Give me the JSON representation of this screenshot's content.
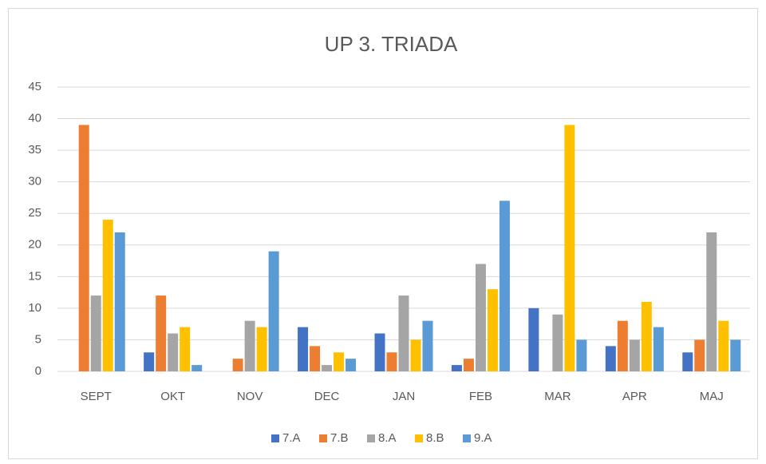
{
  "chart_data": {
    "type": "bar",
    "title": "UP 3. TRIADA",
    "categories": [
      "SEPT",
      "OKT",
      "NOV",
      "DEC",
      "JAN",
      "FEB",
      "MAR",
      "APR",
      "MAJ"
    ],
    "series": [
      {
        "name": "7.A",
        "color": "#4472c4",
        "values": [
          0,
          3,
          0,
          7,
          6,
          1,
          10,
          4,
          3
        ]
      },
      {
        "name": "7.B",
        "color": "#ed7d31",
        "values": [
          39,
          12,
          2,
          4,
          3,
          2,
          0,
          8,
          5
        ]
      },
      {
        "name": "8.A",
        "color": "#a5a5a5",
        "values": [
          12,
          6,
          8,
          1,
          12,
          17,
          9,
          5,
          22
        ]
      },
      {
        "name": "8.B",
        "color": "#ffc000",
        "values": [
          24,
          7,
          7,
          3,
          5,
          13,
          39,
          11,
          8
        ]
      },
      {
        "name": "9.A",
        "color": "#5b9bd5",
        "values": [
          22,
          1,
          19,
          2,
          8,
          27,
          5,
          7,
          5
        ]
      }
    ],
    "ylim": [
      0,
      45
    ],
    "yticks": [
      0,
      5,
      10,
      15,
      20,
      25,
      30,
      35,
      40,
      45
    ],
    "grid": true,
    "legend": "bottom"
  }
}
